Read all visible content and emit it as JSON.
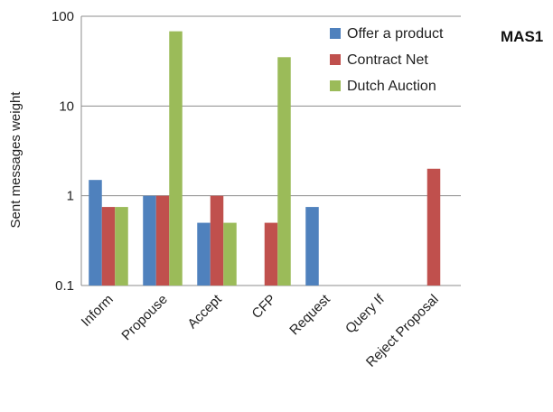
{
  "chart_data": {
    "type": "bar",
    "ylabel": "Sent messages weight",
    "yscale": "log",
    "ylim": [
      0.1,
      100
    ],
    "yticks": [
      "100",
      "10",
      "1",
      "0.1"
    ],
    "grid": true,
    "legend_position": "top-right",
    "side_label": "MAS1",
    "categories": [
      "Inform",
      "Propouse",
      "Accept",
      "CFP",
      "Request",
      "Query If",
      "Reject Proposal"
    ],
    "series": [
      {
        "name": "Offer a product",
        "color": "#4F81BD",
        "values": [
          1.5,
          1,
          0.5,
          null,
          0.75,
          null,
          null
        ]
      },
      {
        "name": "Contract Net",
        "color": "#C0504D",
        "values": [
          0.75,
          1,
          1,
          0.5,
          null,
          null,
          2
        ]
      },
      {
        "name": "Dutch Auction",
        "color": "#9BBB59",
        "values": [
          0.75,
          68,
          0.5,
          35,
          null,
          null,
          null
        ]
      }
    ]
  }
}
